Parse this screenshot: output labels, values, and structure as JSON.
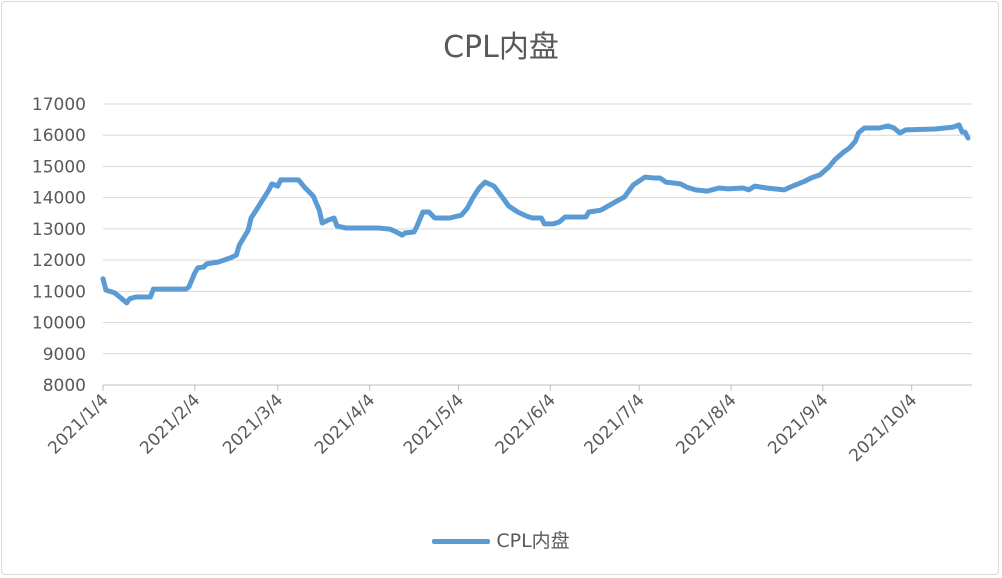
{
  "chart_data": {
    "type": "line",
    "title": "CPL内盘",
    "xlabel": "",
    "ylabel": "",
    "x_unit": "days since 2021/1/4",
    "ylim": [
      8000,
      17000
    ],
    "yticks": [
      8000,
      9000,
      10000,
      11000,
      12000,
      13000,
      14000,
      15000,
      16000,
      17000
    ],
    "xlim": [
      0,
      292
    ],
    "xticks": [
      {
        "x": 0,
        "label": "2021/1/4"
      },
      {
        "x": 31,
        "label": "2021/2/4"
      },
      {
        "x": 59,
        "label": "2021/3/4"
      },
      {
        "x": 90,
        "label": "2021/4/4"
      },
      {
        "x": 120,
        "label": "2021/5/4"
      },
      {
        "x": 151,
        "label": "2021/6/4"
      },
      {
        "x": 181,
        "label": "2021/7/4"
      },
      {
        "x": 212,
        "label": "2021/8/4"
      },
      {
        "x": 243,
        "label": "2021/9/4"
      },
      {
        "x": 273,
        "label": "2021/10/4"
      }
    ],
    "grid": true,
    "legend": "bottom",
    "series": [
      {
        "name": "CPL内盘",
        "color": "#5b9bd5",
        "x": [
          0,
          1,
          4,
          6,
          8,
          9,
          11,
          16,
          17,
          19,
          28,
          29,
          31,
          32,
          34,
          35,
          39,
          43,
          45,
          46,
          49,
          50,
          52,
          56,
          57,
          59,
          60,
          66,
          68,
          71,
          73,
          74,
          76,
          78,
          79,
          82,
          93,
          97,
          99,
          101,
          102,
          105,
          106,
          108,
          110,
          112,
          117,
          121,
          123,
          125,
          127,
          129,
          132,
          135,
          137,
          140,
          143,
          145,
          148,
          149,
          152,
          154,
          156,
          163,
          164,
          168,
          171,
          174,
          176,
          179,
          183,
          186,
          188,
          190,
          195,
          197,
          200,
          204,
          208,
          211,
          216,
          218,
          220,
          224,
          230,
          232,
          237,
          239,
          242,
          245,
          247,
          250,
          252,
          254,
          255,
          257,
          262,
          265,
          267,
          269,
          271,
          281,
          287,
          289,
          290,
          291,
          292
        ],
        "values": [
          11400,
          11040,
          10950,
          10790,
          10630,
          10760,
          10820,
          10820,
          11070,
          11070,
          11070,
          11140,
          11590,
          11750,
          11780,
          11880,
          11940,
          12070,
          12160,
          12480,
          12960,
          13350,
          13640,
          14250,
          14440,
          14370,
          14570,
          14570,
          14340,
          14050,
          13600,
          13190,
          13280,
          13350,
          13090,
          13030,
          13030,
          12990,
          12900,
          12800,
          12870,
          12900,
          13090,
          13540,
          13540,
          13350,
          13350,
          13440,
          13670,
          14020,
          14310,
          14500,
          14370,
          13990,
          13730,
          13540,
          13410,
          13350,
          13350,
          13160,
          13160,
          13220,
          13380,
          13380,
          13540,
          13600,
          13760,
          13920,
          14020,
          14410,
          14660,
          14630,
          14630,
          14500,
          14440,
          14340,
          14250,
          14210,
          14310,
          14280,
          14310,
          14250,
          14370,
          14310,
          14250,
          14340,
          14530,
          14630,
          14730,
          14980,
          15210,
          15460,
          15590,
          15810,
          16070,
          16230,
          16230,
          16300,
          16230,
          16070,
          16170,
          16200,
          16260,
          16330,
          16100,
          16100,
          15910
        ]
      }
    ]
  }
}
